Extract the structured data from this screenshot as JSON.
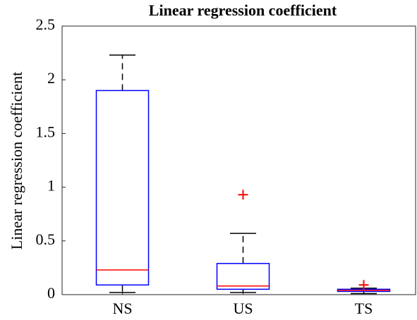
{
  "chart_data": {
    "type": "box",
    "title": "Linear regression coefficient",
    "y_label": "Linear regression coefficient",
    "categories": [
      "NS",
      "US",
      "TS"
    ],
    "boxes": [
      {
        "whisker_low": 0.02,
        "q1": 0.09,
        "median": 0.23,
        "q3": 1.9,
        "whisker_high": 2.23,
        "outliers": []
      },
      {
        "whisker_low": 0.02,
        "q1": 0.05,
        "median": 0.08,
        "q3": 0.29,
        "whisker_high": 0.57,
        "outliers": [
          0.93
        ]
      },
      {
        "whisker_low": 0.01,
        "q1": 0.03,
        "median": 0.04,
        "q3": 0.05,
        "whisker_high": 0.06,
        "outliers": [
          0.09
        ]
      }
    ],
    "box_color": "#0000ff",
    "median_color": "#ff0000",
    "whisker_color": "#000000",
    "outlier_color": "#ff0000",
    "ylim": [
      0,
      2.5
    ],
    "yticks": [
      0,
      0.5,
      1,
      1.5,
      2,
      2.5
    ]
  }
}
